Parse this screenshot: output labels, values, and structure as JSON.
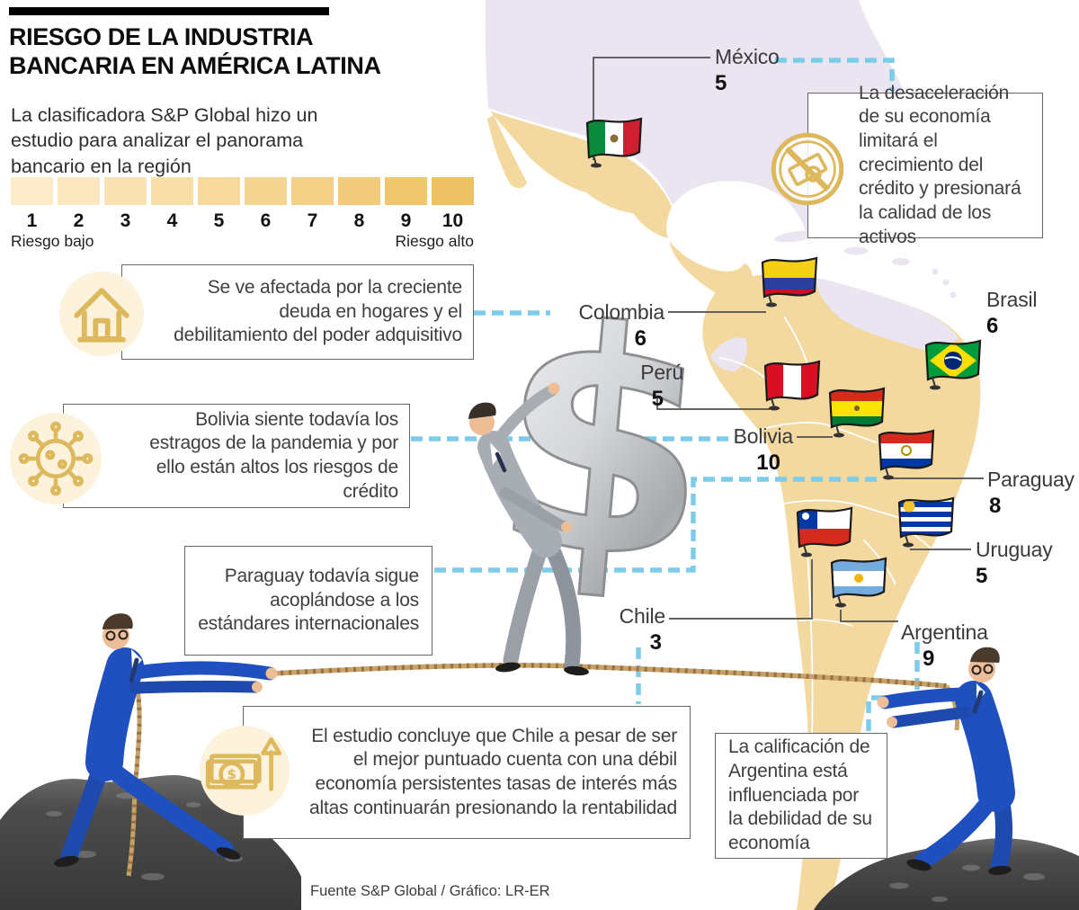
{
  "header": {
    "title_line1": "RIESGO DE LA INDUSTRIA",
    "title_line2": "BANCARIA EN AMÉRICA LATINA",
    "subtitle": "La clasificadora S&P Global hizo un estudio para analizar el panorama bancario en la región"
  },
  "scale": {
    "levels": [
      "1",
      "2",
      "3",
      "4",
      "5",
      "6",
      "7",
      "8",
      "9",
      "10"
    ],
    "colors": [
      "#fceccb",
      "#fbe8c0",
      "#f9e3b4",
      "#f8dfa9",
      "#f6da9d",
      "#f4d592",
      "#f3d086",
      "#f1cb7b",
      "#efc76f",
      "#eec264"
    ],
    "low_label": "Riesgo bajo",
    "high_label": "Riesgo alto"
  },
  "countries": [
    {
      "name": "México",
      "score": "5"
    },
    {
      "name": "Colombia",
      "score": "6"
    },
    {
      "name": "Perú",
      "score": "5"
    },
    {
      "name": "Bolivia",
      "score": "10"
    },
    {
      "name": "Brasil",
      "score": "6"
    },
    {
      "name": "Paraguay",
      "score": "8"
    },
    {
      "name": "Uruguay",
      "score": "5"
    },
    {
      "name": "Chile",
      "score": "3"
    },
    {
      "name": "Argentina",
      "score": "9"
    }
  ],
  "callouts": {
    "mexico": {
      "icon": "no-money-icon",
      "text": "La desaceleración de su economía limitará el crecimiento del crédito y presionará la calidad de los activos"
    },
    "colombia": {
      "icon": "house-icon",
      "text": "Se ve afectada por la creciente deuda en hogares y el debilitamiento del poder adquisitivo"
    },
    "bolivia": {
      "icon": "virus-icon",
      "text": "Bolivia siente todavía los estragos de la pandemia y por ello están altos los riesgos de crédito"
    },
    "paraguay": {
      "icon": "",
      "text": "Paraguay todavía sigue acoplándose a los estándares internacionales"
    },
    "chile": {
      "icon": "money-growth-icon",
      "text": "El estudio concluye que Chile a pesar de ser el mejor puntuado cuenta con una débil economía persistentes tasas de interés más altas continuarán presionando la rentabilidad"
    },
    "argentina": {
      "icon": "",
      "text": "La calificación de Argentina está influenciada por la debilidad de su economía"
    }
  },
  "source": "Fuente S&P Global / Gráfico: LR-ER",
  "colors": {
    "accent_dash": "#7dcce9",
    "map_highlight": "#f3d89f",
    "map_muted": "#ebe4f1",
    "gold_icon": "#ddb85c"
  }
}
